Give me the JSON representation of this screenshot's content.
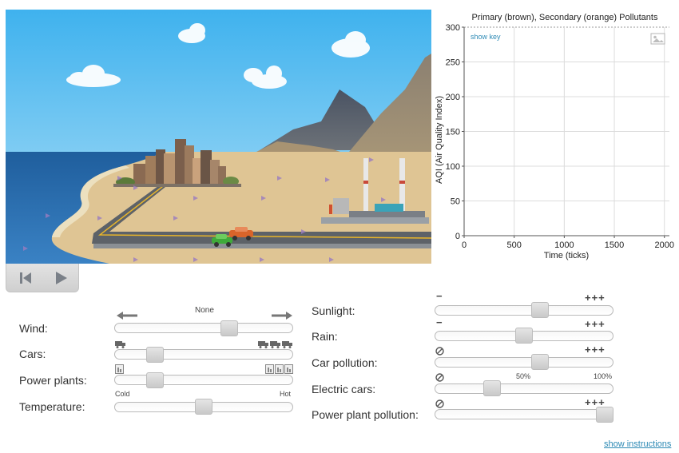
{
  "chart": {
    "title": "Primary (brown), Secondary (orange) Pollutants",
    "show_key": "show key",
    "ylabel": "AQI (Air Quality Index)",
    "xlabel": "Time (ticks)",
    "y_ticks": [
      "0",
      "50",
      "100",
      "150",
      "200",
      "250",
      "300"
    ],
    "x_ticks": [
      "0",
      "500",
      "1000",
      "1500",
      "2000"
    ]
  },
  "chart_data": {
    "type": "line",
    "title": "Primary (brown), Secondary (orange) Pollutants",
    "xlabel": "Time (ticks)",
    "ylabel": "AQI (Air Quality Index)",
    "xlim": [
      0,
      2050
    ],
    "ylim": [
      0,
      300
    ],
    "x_ticks": [
      0,
      500,
      1000,
      1500,
      2000
    ],
    "y_ticks": [
      0,
      50,
      100,
      150,
      200,
      250,
      300
    ],
    "grid": true,
    "series": [
      {
        "name": "Primary",
        "color": "#8b5a2b",
        "x": [],
        "y": []
      },
      {
        "name": "Secondary",
        "color": "#f28c28",
        "x": [],
        "y": []
      }
    ]
  },
  "controls": {
    "wind": {
      "label": "Wind:",
      "none_label": "None",
      "value": 0.66
    },
    "cars": {
      "label": "Cars:",
      "value": 0.2
    },
    "power_plants": {
      "label": "Power plants:",
      "min_label": "Cold",
      "max_label": "Hot",
      "value": 0.2
    },
    "temperature": {
      "label": "Temperature:",
      "value": 0.5
    },
    "sunlight": {
      "label": "Sunlight:",
      "min_sym": "−",
      "max_sym": "+++",
      "value": 0.6
    },
    "rain": {
      "label": "Rain:",
      "min_sym": "−",
      "max_sym": "+++",
      "value": 0.5
    },
    "car_pollution": {
      "label": "Car pollution:",
      "max_sym": "+++",
      "value": 0.6
    },
    "electric_cars": {
      "label": "Electric cars:",
      "mid_label": "50%",
      "max_label": "100%",
      "value": 0.3
    },
    "power_plant_pollution": {
      "label": "Power plant pollution:",
      "max_sym": "+++",
      "value": 1.0
    }
  },
  "footer": {
    "show_instructions": "show instructions"
  },
  "icons": {
    "play": "play-icon",
    "reset": "skip-back-icon",
    "image": "image-icon",
    "wind_left": "arrow-left-icon",
    "wind_right": "arrow-right-icon",
    "truck": "truck-icon",
    "factory": "factory-icon",
    "none": "prohibited-icon"
  },
  "colors": {
    "sky_top": "#3fb2ee",
    "sky_bottom": "#c6e8fa",
    "ocean": "#2b6fb2",
    "sand": "#dfc594",
    "road": "#555a60",
    "road_line": "#e8b52a",
    "link": "#2d8ab5"
  }
}
